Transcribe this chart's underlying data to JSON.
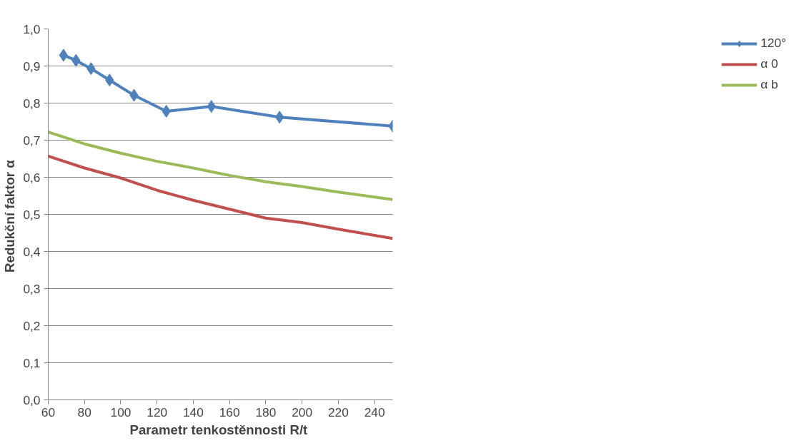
{
  "chart_data": {
    "type": "line",
    "xlabel": "Parametr tenkostěnnosti  R/t",
    "ylabel": "Redukční faktor  α",
    "xlim": [
      60,
      250
    ],
    "xticks": [
      60,
      80,
      100,
      120,
      140,
      160,
      180,
      200,
      220,
      240
    ],
    "ylim": [
      0,
      1
    ],
    "yticks": [
      {
        "value": 0,
        "label": "0,0"
      },
      {
        "value": 0.1,
        "label": "0,1"
      },
      {
        "value": 0.2,
        "label": "0,2"
      },
      {
        "value": 0.3,
        "label": "0,3"
      },
      {
        "value": 0.4,
        "label": "0,4"
      },
      {
        "value": 0.5,
        "label": "0,5"
      },
      {
        "value": 0.6,
        "label": "0,6"
      },
      {
        "value": 0.7,
        "label": "0,7"
      },
      {
        "value": 0.8,
        "label": "0,8"
      },
      {
        "value": 0.9,
        "label": "0,9"
      },
      {
        "value": 1,
        "label": "1,0"
      }
    ],
    "grid": "y",
    "legend": "right",
    "series": [
      {
        "name": "120°",
        "color": "#4f81bd",
        "marker": "diamond",
        "x": [
          68.4,
          75.3,
          83.6,
          93.8,
          107.3,
          125.1,
          150,
          187.6,
          250
        ],
        "values": [
          0.929,
          0.915,
          0.893,
          0.862,
          0.821,
          0.778,
          0.791,
          0.762,
          0.738
        ]
      },
      {
        "name": "α 0",
        "color": "#c0504d",
        "marker": "none",
        "x": [
          60,
          80,
          100,
          120,
          140,
          150,
          160,
          180,
          200,
          220,
          250
        ],
        "values": [
          0.657,
          0.625,
          0.598,
          0.565,
          0.538,
          0.526,
          0.514,
          0.49,
          0.478,
          0.46,
          0.435
        ]
      },
      {
        "name": "α b",
        "color": "#9bbb59",
        "marker": "none",
        "x": [
          60,
          80,
          100,
          120,
          140,
          150,
          160,
          180,
          200,
          220,
          250
        ],
        "values": [
          0.722,
          0.69,
          0.665,
          0.643,
          0.625,
          0.615,
          0.605,
          0.588,
          0.575,
          0.56,
          0.54
        ]
      }
    ]
  }
}
